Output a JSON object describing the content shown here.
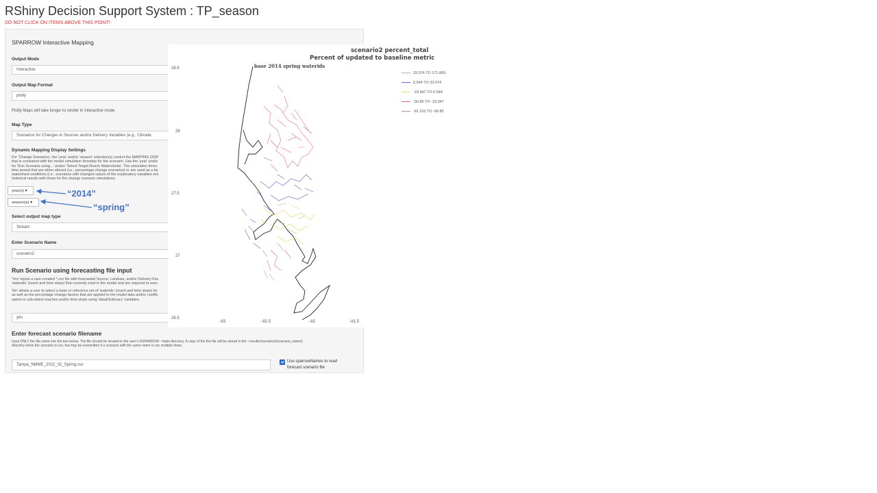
{
  "app": {
    "title": "RShiny Decision Support System : TP_season",
    "warning": "DO NOT CLICK ON ITEMS ABOVE THIS POINT!"
  },
  "panel": {
    "title": "SPARROW Interactive Mapping",
    "output_mode": {
      "label": "Output Mode",
      "value": "Interactive"
    },
    "map_format": {
      "label": "Output Map Format",
      "value": "plotly",
      "note": "Plotly Maps will take longer to render in Interactive mode"
    },
    "map_type": {
      "label": "Map Type",
      "value": "Scenarios for Changes in Sources and/or Delivery Variables (e.g., Climate,"
    },
    "dynamic": {
      "label": "Dynamic Mapping Display Settings",
      "text": [
        "For 'Change Scenarios', the 'year' and/or 'season' selection(s) control the MAPPING DISP",
        "that is consistent with the model simulation timestep for the scenario. Use the 'year' and/o",
        "for 'Run Scenario using...' and/or 'Select Target Reach Watersheds'. The simulation times",
        "time period that are either altered (i.e., percentage-change scenarios) or are used as a be",
        "watershed conditions (i.e., scenarios with changed values of the explanatory variables ent",
        "historical results with those for the change scenario simulations."
      ],
      "year_button": "year(s) ▾",
      "season_button": "season(s) ▾"
    },
    "output_map_type": {
      "label": "Select output map type",
      "value": "Stream"
    },
    "scenario_name": {
      "label": "Enter Scenario Name",
      "value": "scenario2"
    },
    "run_scenario": {
      "heading": "Run Scenario using forecasting file input",
      "yes_text": [
        "'Yes' inputs a user-created *.csv file with forecasted Source, Landuse, and/or Delivery Fac",
        "'waterids' (reach and time steps) that currently exist in the model and are required to exec"
      ],
      "no_text": [
        "'No' allows a user to select a base or reference set of 'waterids' (reach and time steps) for",
        "as well as the percentage change factors that are applied to the model data and/or coeffic",
        "option to sub-select reaches and/or time steps using 'dataDictionary' variables."
      ],
      "value": "yes"
    },
    "forecast": {
      "heading": "Enter forecast scenario filename",
      "text": [
        "Input ONLY the file name into the box below. The file should be located in the user's RSPARROW ~/data directory. A copy of the the file will be stored in the ~results/scenarios/(scenario_name)/",
        "directory when the scenario is run, but may be overwritten if a scenario with the same name is run multiple times."
      ],
      "filename": "Tampa_NMME_2022_02_Spring.csv",
      "checkbox_line1": "Use sparrowNames to read",
      "checkbox_line2": "forecast scenario file"
    }
  },
  "annotations": {
    "year": "“2014”",
    "season": "“spring”",
    "color": "#4472c4"
  },
  "map": {
    "title1": "scenario2 percent_total",
    "title2": "Percent of updated to baseline metric",
    "subtitle": "base 2014 spring waterids",
    "y_ticks": [
      "28.5",
      "28",
      "27.5",
      "27",
      "26.5"
    ],
    "x_ticks": [
      "−83",
      "−82.5",
      "−82",
      "−81.5"
    ],
    "legend": [
      {
        "label": "33.074 TO 171.869",
        "color": "#b0b0b0"
      },
      {
        "label": "6.544 TO 33.074",
        "color": "#6060e0"
      },
      {
        "label": "-19.947 TO 6.544",
        "color": "#e8e070"
      },
      {
        "label": "-56.85 TO -19.947",
        "color": "#f06070"
      },
      {
        "label": "-81.232 TO -56.85",
        "color": "#c09098"
      }
    ]
  }
}
